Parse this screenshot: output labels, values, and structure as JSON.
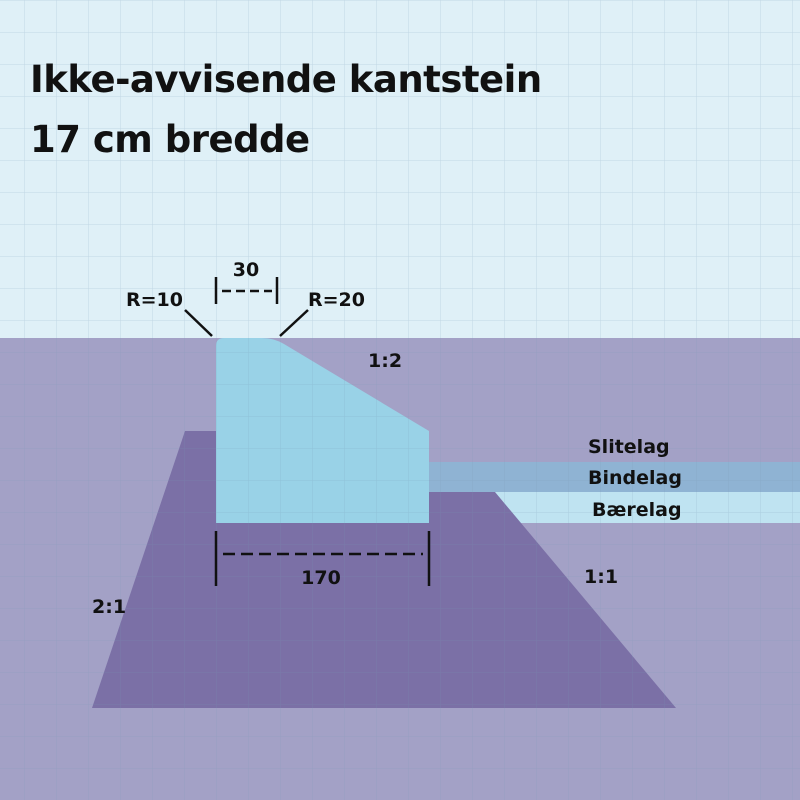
{
  "title": {
    "line1": "Ikke-avvisende kantstein",
    "line2": "17 cm bredde"
  },
  "dimensions": {
    "top_width": "30",
    "bottom_width": "170",
    "radius_left": "R=10",
    "radius_right": "R=20"
  },
  "slopes": {
    "curb_face": "1:2",
    "left_foundation": "2:1",
    "right_foundation": "1:1"
  },
  "layers": {
    "wear": "Slitelag",
    "binder": "Bindelag",
    "base": "Bærelag"
  },
  "colors": {
    "sky": "#dff0f7",
    "ground": "#a3a1c6",
    "foundation": "#7b70a6",
    "curb": "#99d2e7",
    "slitelag": "#a3a1c6",
    "bindelag": "#8fb3d3",
    "baerelag": "#bfe3f1",
    "ink": "#111111"
  }
}
